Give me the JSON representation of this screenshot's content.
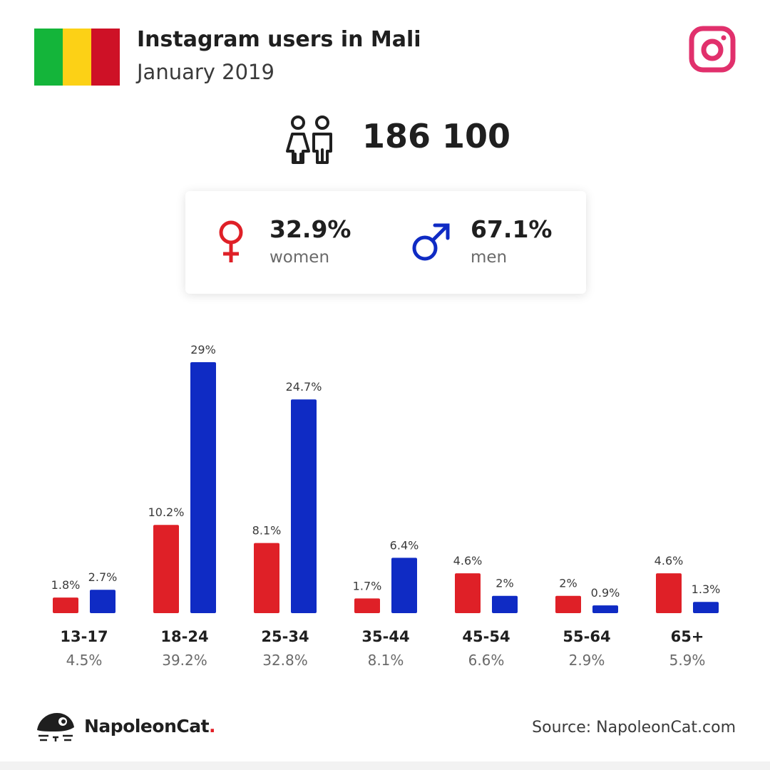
{
  "header": {
    "title": "Instagram users in Mali",
    "subtitle": "January 2019",
    "flag_colors": [
      "#14b53a",
      "#fcd116",
      "#ce1126"
    ],
    "logo_icon": "instagram-icon",
    "logo_color": "#e1306c"
  },
  "total": {
    "value": "186 100",
    "icon": "people-icon"
  },
  "gender": {
    "women": {
      "pct": "32.9%",
      "label": "women",
      "icon": "female-symbol-icon",
      "color": "#df2027"
    },
    "men": {
      "pct": "67.1%",
      "label": "men",
      "icon": "male-symbol-icon",
      "color": "#0f2bc4"
    }
  },
  "chart_data": {
    "type": "bar",
    "categories": [
      "13-17",
      "18-24",
      "25-34",
      "35-44",
      "45-54",
      "55-64",
      "65+"
    ],
    "category_totals": [
      "4.5%",
      "39.2%",
      "32.8%",
      "8.1%",
      "6.6%",
      "2.9%",
      "5.9%"
    ],
    "series": [
      {
        "values": [
          1.8,
          10.2,
          8.1,
          1.7,
          4.6,
          2,
          4.6
        ],
        "labels": [
          "1.8%",
          "10.2%",
          "8.1%",
          "1.7%",
          "4.6%",
          "2%",
          "4.6%"
        ],
        "color": "#df2027"
      },
      {
        "values": [
          2.7,
          29,
          24.7,
          6.4,
          2,
          0.9,
          1.3
        ],
        "labels": [
          "2.7%",
          "29%",
          "24.7%",
          "6.4%",
          "2%",
          "0.9%",
          "1.3%"
        ],
        "color": "#0f2bc4"
      }
    ],
    "ylim": [
      0,
      29
    ],
    "grid": false
  },
  "footer": {
    "brand": "NapoleonCat",
    "brand_dot": ".",
    "brand_icon": "napoleoncat-logo-icon",
    "source": "Source: NapoleonCat.com"
  }
}
